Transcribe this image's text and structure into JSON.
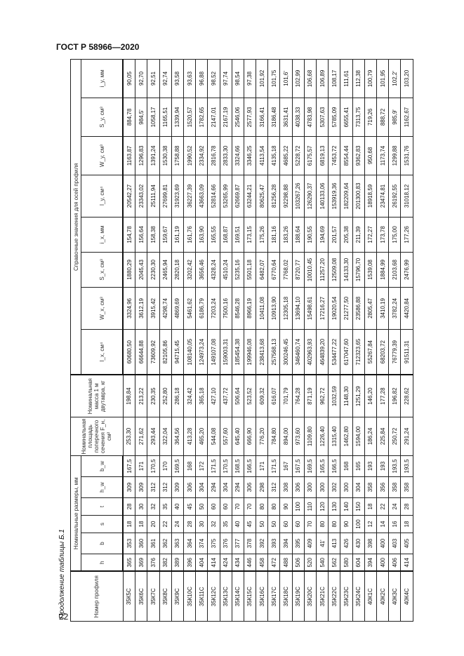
{
  "doc_header": "ГОСТ Р 58966—2020",
  "page_number": "22",
  "caption": "Продолжение таблицы Б.1",
  "group_headers": {
    "profile": "Номер профиля",
    "dims": "Номинальные размеры, мм",
    "area": "Номинальная площадь поперечного сечения F_н, см²",
    "mass": "Номинальная масса 1 м двутавра, кг",
    "ref": "Справочные значения для осей профиля"
  },
  "columns": [
    "h",
    "b",
    "s",
    "t",
    "h_w",
    "b_w",
    "",
    "",
    "I_x, см⁴",
    "W_x, см³",
    "S_x, см³",
    "i_x, мм",
    "I_y, см⁴",
    "W_y, см³",
    "S_y, см³",
    "i_y, мм"
  ],
  "rows": [
    [
      "35К5С",
      "365",
      "353",
      "18",
      "28",
      "309",
      "167,5",
      "253,30",
      "198,84",
      "60680,50",
      "3324,96",
      "1880,29",
      "154,78",
      "20542,27",
      "1163,87",
      "884,78",
      "90,05"
    ],
    [
      "35К6С",
      "369",
      "360",
      "18",
      "30",
      "309",
      "171",
      "271,62",
      "213,22",
      "66644,88",
      "3612,19",
      "2045,43",
      "156,64",
      "23343,02",
      "1296,83",
      "984,5'",
      "92,70"
    ],
    [
      "35К7С",
      "376",
      "361",
      "20",
      "32",
      "312",
      "170,5",
      "293,44",
      "230,35",
      "73609,92",
      "3915,42",
      "2230,30",
      "158,38",
      "25111,94",
      "1391,24",
      "1058,17",
      "92,51"
    ],
    [
      "35К8С",
      "382",
      "362",
      "22",
      "35",
      "312",
      "170",
      "322,04",
      "252,80",
      "82105,86",
      "4298,74",
      "2465,94",
      "159,67",
      "27699,81",
      "1530,38",
      "1165,51",
      "92,74"
    ],
    [
      "35К9С",
      "389",
      "363",
      "24",
      "40",
      "309",
      "169,5",
      "364,56",
      "286,18",
      "94715,45",
      "4869,69",
      "2820,18",
      "161,19",
      "31923,69",
      "1758,88",
      "1339,94",
      "93,58"
    ],
    [
      "35К10С",
      "396",
      "364",
      "28",
      "45",
      "306",
      "168",
      "413,28",
      "324,42",
      "108140,05",
      "5461,62",
      "3202,42",
      "161,76",
      "36227,39",
      "1990,52",
      "1520,57",
      "93,63"
    ],
    [
      "35К11С",
      "404",
      "374",
      "30",
      "50",
      "304",
      "172",
      "465,20",
      "365,18",
      "124973,24",
      "6186,79",
      "3656,46",
      "163,90",
      "43663,09",
      "2334,92",
      "1782,65",
      "96,88"
    ],
    [
      "35К12С",
      "414",
      "375",
      "32",
      "60",
      "294",
      "171,5",
      "544,08",
      "427,10",
      "149107,08",
      "7203,24",
      "4328,24",
      "165,55",
      "52814,66",
      "2816,78",
      "2147,01",
      "98,52"
    ],
    [
      "35К13С",
      "424",
      "376",
      "35",
      "60",
      "304",
      "170,5",
      "557,60",
      "437,72",
      "159003,31",
      "7500,16",
      "4510,24",
      "168,87",
      "53265,99",
      "2833,30",
      "2167,19",
      "97,74"
    ],
    [
      "35К14С",
      "434",
      "377",
      "40",
      "70",
      "294",
      "168,5",
      "645,40",
      "506,64",
      "185454,38",
      "8546,28",
      "5235,16",
      "169,51",
      "62669,87",
      "3324,66",
      "2546,06",
      "98,54"
    ],
    [
      "35К15С",
      "446",
      "378",
      "45",
      "70",
      "306",
      "166,5",
      "666,90",
      "523,52",
      "199946,08",
      "8966,19",
      "5501,18",
      "173,15",
      "63244,21",
      "3346,25",
      "2577,93",
      "97,38"
    ],
    [
      "35К16С",
      "458",
      "392",
      "50",
      "80",
      "298",
      "171",
      "776,20",
      "609,32",
      "238413,68",
      "10411,08",
      "6482,07",
      "175,26",
      "80625,47",
      "4113,54",
      "3166,41",
      "101,92"
    ],
    [
      "35К17С",
      "472",
      "393",
      "50",
      "80",
      "312",
      "171,5",
      "784,80",
      "616,07",
      "257568,13",
      "10913,90",
      "6770,64",
      "181,16",
      "81256,28",
      "4135,18",
      "3186,48",
      "101,75"
    ],
    [
      "35К18С",
      "488",
      "394",
      "60",
      "90",
      "308",
      "167",
      "894,00",
      "701,79",
      "300246,45",
      "12305,18",
      "7768,02",
      "183,26",
      "92298,88",
      "4685,22",
      "3631,41",
      "101,6'"
    ],
    [
      "35К19С",
      "506",
      "395",
      "60",
      "100",
      "306",
      "167,5",
      "973,60",
      "764,28",
      "346460,74",
      "13694,10",
      "8720,77",
      "188,64",
      "103267,26",
      "5228,72",
      "4038,33",
      "102,99"
    ],
    [
      "35К20С",
      "520",
      "409",
      "70",
      "110",
      "300",
      "169,5",
      "1109,80",
      "871,19",
      "402963,93",
      "15498,61",
      "10010,45",
      "190,55",
      "126290,37",
      "6175,57",
      "4783,98",
      "106,68"
    ],
    [
      "35К21С",
      "540",
      "41'",
      "80",
      "120",
      "300",
      "165,5",
      "1226,40",
      "962,72",
      "464839,20",
      "17216,27",
      "11257,20",
      "194,69",
      "140133,06",
      "6819,13",
      "5307,63",
      "106,89"
    ],
    [
      "35К22С",
      "562",
      "413",
      "80",
      "130",
      "302",
      "166,5",
      "1315,40",
      "1032,59",
      "534477,22",
      "19020,54",
      "12509,08",
      "201,57",
      "153919,36",
      "7453,72",
      "5785,09",
      "108,17"
    ],
    [
      "35К23С",
      "580",
      "426",
      "90",
      "140",
      "300",
      "168",
      "1462,80",
      "1148,30",
      "617047,60",
      "21277,50",
      "14133,30",
      "205,38",
      "182209,64",
      "8554,44",
      "6655,41",
      "111,61"
    ],
    [
      "35К24С",
      "604",
      "430",
      "100",
      "150",
      "304",
      "165",
      "1594,00",
      "1251,29",
      "712323,65",
      "23586,88",
      "15796,70",
      "211,39",
      "201300,83",
      "9362,83",
      "7313,75",
      "112,38"
    ],
    [
      "40К1С",
      "394",
      "398",
      "12",
      "18",
      "358",
      "193",
      "186,24",
      "146,20",
      "55267,84",
      "2805,47",
      "1539,08",
      "172,27",
      "18918,59",
      "950,68",
      "719,26",
      "100,79"
    ],
    [
      "40К2С",
      "400",
      "400",
      "14",
      "22",
      "356",
      "193",
      "225,84",
      "177,28",
      "68203,72",
      "3410,19",
      "1884,99",
      "173,78",
      "23474,81",
      "1173,74",
      "888,72",
      "101,95"
    ],
    [
      "40К3С",
      "406",
      "403",
      "16",
      "24",
      "358",
      "193,5",
      "250,72",
      "196,82",
      "76779,39",
      "3782,24",
      "2103,68",
      "175,00",
      "26192,55",
      "1299,88",
      "985,9'",
      "102,2'"
    ],
    [
      "40К4С",
      "414",
      "405",
      "18",
      "28",
      "358",
      "193,5",
      "291,24",
      "228,62",
      "91511,31",
      "4420,84",
      "2476,99",
      "177,26",
      "31018,12",
      "1531,76",
      "1162,67",
      "103,20"
    ]
  ]
}
